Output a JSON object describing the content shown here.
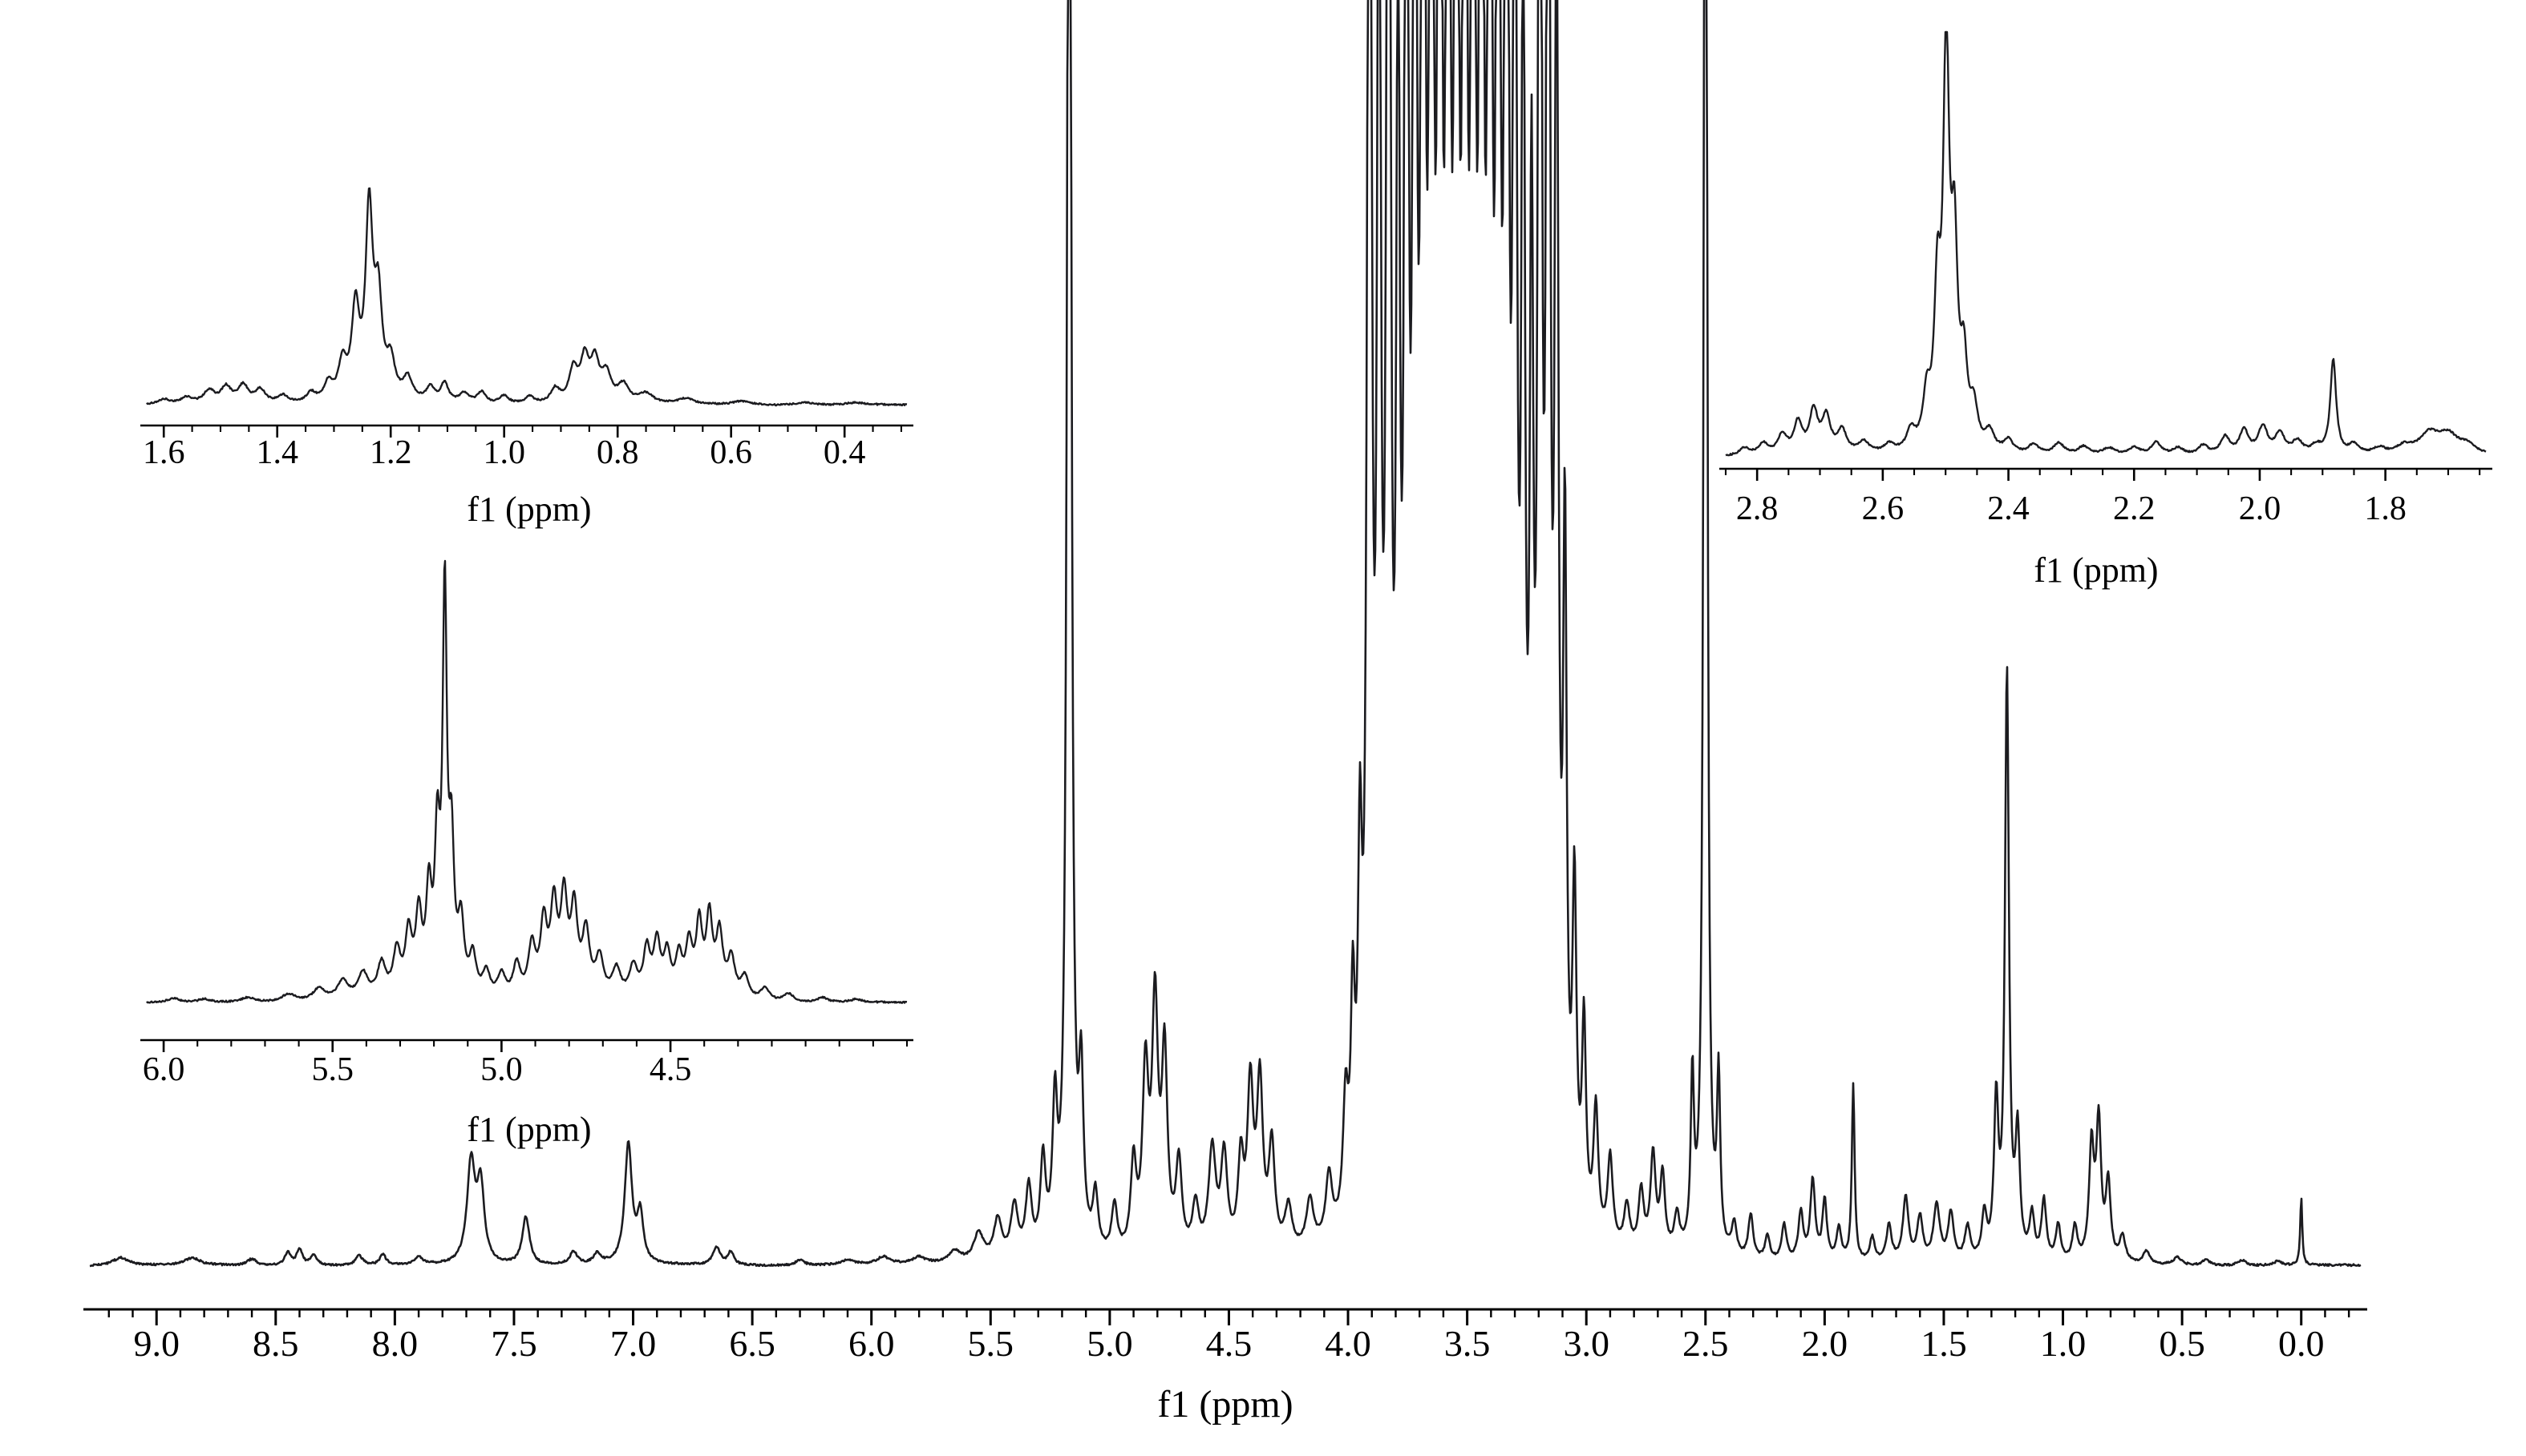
{
  "figure": {
    "background": "#ffffff",
    "curve_color": "#1b1b1f",
    "axis_color": "#000000",
    "description": "1H NMR spectrum with three inset expansions"
  },
  "chart_data": [
    {
      "id": "main-spectrum",
      "type": "line",
      "kind": "1H NMR full spectrum",
      "title": "",
      "xlabel": "f1 (ppm)",
      "ylabel": "",
      "grid": false,
      "x_axis_reversed": true,
      "x_range": [
        9.28,
        -0.25
      ],
      "ticks": {
        "major": [
          9.0,
          8.5,
          8.0,
          7.5,
          7.0,
          6.5,
          6.0,
          5.5,
          5.0,
          4.5,
          4.0,
          3.5,
          3.0,
          2.5,
          2.0,
          1.5,
          1.0,
          0.5,
          0.0
        ],
        "labels": [
          "9.0",
          "8.5",
          "8.0",
          "7.5",
          "7.0",
          "6.5",
          "6.0",
          "5.5",
          "5.0",
          "4.5",
          "4.0",
          "3.5",
          "3.0",
          "2.5",
          "2.0",
          "1.5",
          "1.0",
          "0.5",
          "0.0"
        ],
        "minor_step": 0.1
      },
      "peak_format": [
        "ppm",
        "height_px",
        "hwhm_ppm"
      ],
      "peaks": [
        [
          9.15,
          10,
          0.04
        ],
        [
          8.85,
          9,
          0.04
        ],
        [
          8.6,
          8,
          0.025
        ],
        [
          8.45,
          16,
          0.015
        ],
        [
          8.4,
          20,
          0.015
        ],
        [
          8.34,
          14,
          0.015
        ],
        [
          8.15,
          12,
          0.018
        ],
        [
          8.05,
          13,
          0.015
        ],
        [
          7.9,
          9,
          0.02
        ],
        [
          7.68,
          125,
          0.02
        ],
        [
          7.64,
          95,
          0.018
        ],
        [
          7.45,
          60,
          0.018
        ],
        [
          7.25,
          16,
          0.02
        ],
        [
          7.15,
          13,
          0.02
        ],
        [
          7.02,
          150,
          0.018
        ],
        [
          6.97,
          60,
          0.015
        ],
        [
          6.65,
          22,
          0.018
        ],
        [
          6.59,
          16,
          0.015
        ],
        [
          6.3,
          7,
          0.02
        ],
        [
          6.1,
          6,
          0.03
        ],
        [
          5.95,
          9,
          0.03
        ],
        [
          5.8,
          8,
          0.03
        ],
        [
          5.65,
          14,
          0.03
        ],
        [
          5.55,
          35,
          0.025
        ],
        [
          5.47,
          50,
          0.02
        ],
        [
          5.4,
          65,
          0.018
        ],
        [
          5.34,
          85,
          0.015
        ],
        [
          5.28,
          115,
          0.013
        ],
        [
          5.23,
          170,
          0.012
        ],
        [
          5.17,
          2600,
          0.009
        ],
        [
          5.12,
          200,
          0.011
        ],
        [
          5.06,
          70,
          0.013
        ],
        [
          4.98,
          60,
          0.014
        ],
        [
          4.9,
          110,
          0.014
        ],
        [
          4.85,
          220,
          0.015
        ],
        [
          4.81,
          300,
          0.015
        ],
        [
          4.77,
          240,
          0.014
        ],
        [
          4.71,
          110,
          0.015
        ],
        [
          4.64,
          60,
          0.016
        ],
        [
          4.57,
          130,
          0.018
        ],
        [
          4.52,
          120,
          0.016
        ],
        [
          4.45,
          110,
          0.014
        ],
        [
          4.41,
          200,
          0.015
        ],
        [
          4.37,
          205,
          0.015
        ],
        [
          4.32,
          130,
          0.015
        ],
        [
          4.25,
          55,
          0.018
        ],
        [
          4.16,
          60,
          0.018
        ],
        [
          4.08,
          80,
          0.016
        ],
        [
          4.01,
          150,
          0.013
        ],
        [
          3.98,
          250,
          0.01
        ],
        [
          3.95,
          400,
          0.01
        ],
        [
          3.91,
          2600,
          0.009
        ],
        [
          3.87,
          1800,
          0.009
        ],
        [
          3.83,
          2600,
          0.009
        ],
        [
          3.79,
          1400,
          0.009
        ],
        [
          3.755,
          2600,
          0.008
        ],
        [
          3.72,
          2200,
          0.009
        ],
        [
          3.685,
          2600,
          0.009
        ],
        [
          3.65,
          2600,
          0.009
        ],
        [
          3.615,
          2600,
          0.009
        ],
        [
          3.58,
          2600,
          0.009
        ],
        [
          3.545,
          2600,
          0.009
        ],
        [
          3.51,
          2600,
          0.009
        ],
        [
          3.475,
          2600,
          0.009
        ],
        [
          3.44,
          2600,
          0.009
        ],
        [
          3.405,
          2600,
          0.009
        ],
        [
          3.37,
          2400,
          0.009
        ],
        [
          3.335,
          2600,
          0.009
        ],
        [
          3.3,
          2000,
          0.009
        ],
        [
          3.265,
          1500,
          0.009
        ],
        [
          3.23,
          1100,
          0.009
        ],
        [
          3.195,
          2600,
          0.008
        ],
        [
          3.16,
          2600,
          0.008
        ],
        [
          3.125,
          1600,
          0.009
        ],
        [
          3.09,
          800,
          0.009
        ],
        [
          3.05,
          400,
          0.01
        ],
        [
          3.01,
          250,
          0.01
        ],
        [
          2.96,
          160,
          0.012
        ],
        [
          2.9,
          110,
          0.013
        ],
        [
          2.83,
          55,
          0.014
        ],
        [
          2.77,
          75,
          0.013
        ],
        [
          2.72,
          120,
          0.013
        ],
        [
          2.68,
          95,
          0.012
        ],
        [
          2.62,
          45,
          0.013
        ],
        [
          2.555,
          210,
          0.008
        ],
        [
          2.5,
          2600,
          0.0075
        ],
        [
          2.445,
          210,
          0.008
        ],
        [
          2.38,
          40,
          0.012
        ],
        [
          2.31,
          55,
          0.012
        ],
        [
          2.24,
          30,
          0.012
        ],
        [
          2.17,
          45,
          0.012
        ],
        [
          2.1,
          60,
          0.012
        ],
        [
          2.05,
          100,
          0.012
        ],
        [
          2.0,
          75,
          0.011
        ],
        [
          1.94,
          40,
          0.012
        ],
        [
          1.88,
          220,
          0.007
        ],
        [
          1.8,
          30,
          0.012
        ],
        [
          1.73,
          45,
          0.013
        ],
        [
          1.66,
          80,
          0.014
        ],
        [
          1.6,
          55,
          0.014
        ],
        [
          1.53,
          70,
          0.016
        ],
        [
          1.47,
          60,
          0.014
        ],
        [
          1.4,
          42,
          0.014
        ],
        [
          1.33,
          55,
          0.012
        ],
        [
          1.28,
          190,
          0.011
        ],
        [
          1.235,
          730,
          0.01
        ],
        [
          1.19,
          150,
          0.011
        ],
        [
          1.13,
          55,
          0.012
        ],
        [
          1.08,
          75,
          0.012
        ],
        [
          1.02,
          45,
          0.012
        ],
        [
          0.95,
          42,
          0.012
        ],
        [
          0.88,
          140,
          0.012
        ],
        [
          0.85,
          170,
          0.012
        ],
        [
          0.81,
          95,
          0.012
        ],
        [
          0.75,
          32,
          0.014
        ],
        [
          0.65,
          16,
          0.016
        ],
        [
          0.52,
          10,
          0.018
        ],
        [
          0.4,
          8,
          0.018
        ],
        [
          0.25,
          7,
          0.02
        ],
        [
          0.1,
          5,
          0.02
        ],
        [
          0.0,
          85,
          0.005
        ]
      ]
    },
    {
      "id": "inset-aliphatic",
      "type": "line",
      "kind": "inset expansion 1.6-0.4 ppm",
      "title": "",
      "xlabel": "f1 (ppm)",
      "grid": false,
      "x_axis_reversed": true,
      "x_range": [
        1.63,
        0.29
      ],
      "ticks": {
        "major": [
          1.6,
          1.4,
          1.2,
          1.0,
          0.8,
          0.6,
          0.4
        ],
        "labels": [
          "1.6",
          "1.4",
          "1.2",
          "1.0",
          "0.8",
          "0.6",
          "0.4"
        ],
        "minor_step": 0.05
      },
      "peak_format": [
        "ppm",
        "height_px",
        "hwhm_ppm"
      ],
      "peaks": [
        [
          1.6,
          6,
          0.012
        ],
        [
          1.56,
          8,
          0.012
        ],
        [
          1.52,
          16,
          0.012
        ],
        [
          1.49,
          20,
          0.011
        ],
        [
          1.46,
          22,
          0.011
        ],
        [
          1.43,
          17,
          0.011
        ],
        [
          1.39,
          10,
          0.012
        ],
        [
          1.34,
          12,
          0.01
        ],
        [
          1.31,
          22,
          0.009
        ],
        [
          1.285,
          45,
          0.009
        ],
        [
          1.262,
          110,
          0.008
        ],
        [
          1.238,
          232,
          0.0075
        ],
        [
          1.222,
          120,
          0.008
        ],
        [
          1.2,
          45,
          0.009
        ],
        [
          1.17,
          28,
          0.01
        ],
        [
          1.13,
          18,
          0.009
        ],
        [
          1.105,
          24,
          0.008
        ],
        [
          1.07,
          12,
          0.01
        ],
        [
          1.04,
          14,
          0.009
        ],
        [
          1.0,
          10,
          0.01
        ],
        [
          0.955,
          9,
          0.01
        ],
        [
          0.91,
          18,
          0.01
        ],
        [
          0.878,
          40,
          0.009
        ],
        [
          0.858,
          52,
          0.009
        ],
        [
          0.84,
          48,
          0.009
        ],
        [
          0.82,
          34,
          0.01
        ],
        [
          0.79,
          22,
          0.012
        ],
        [
          0.75,
          12,
          0.015
        ],
        [
          0.68,
          7,
          0.018
        ],
        [
          0.58,
          5,
          0.02
        ],
        [
          0.47,
          4,
          0.02
        ],
        [
          0.38,
          3,
          0.02
        ]
      ]
    },
    {
      "id": "inset-anomeric",
      "type": "line",
      "kind": "inset expansion 6.0-4.5 ppm",
      "title": "",
      "xlabel": "f1 (ppm)",
      "grid": false,
      "x_axis_reversed": true,
      "x_range": [
        6.05,
        3.8
      ],
      "ticks": {
        "major": [
          6.0,
          5.5,
          5.0,
          4.5
        ],
        "labels": [
          "6.0",
          "5.5",
          "5.0",
          "4.5"
        ],
        "minor_step": 0.1
      },
      "peak_format": [
        "ppm",
        "height_px",
        "hwhm_ppm"
      ],
      "peaks": [
        [
          5.97,
          5,
          0.02
        ],
        [
          5.88,
          4,
          0.02
        ],
        [
          5.75,
          6,
          0.025
        ],
        [
          5.63,
          10,
          0.025
        ],
        [
          5.54,
          16,
          0.022
        ],
        [
          5.47,
          24,
          0.02
        ],
        [
          5.41,
          32,
          0.018
        ],
        [
          5.355,
          42,
          0.015
        ],
        [
          5.31,
          55,
          0.013
        ],
        [
          5.275,
          75,
          0.012
        ],
        [
          5.245,
          95,
          0.011
        ],
        [
          5.215,
          120,
          0.01
        ],
        [
          5.19,
          180,
          0.009
        ],
        [
          5.168,
          488,
          0.0075
        ],
        [
          5.148,
          170,
          0.009
        ],
        [
          5.12,
          85,
          0.011
        ],
        [
          5.085,
          48,
          0.012
        ],
        [
          5.045,
          30,
          0.013
        ],
        [
          5.0,
          28,
          0.014
        ],
        [
          4.955,
          40,
          0.013
        ],
        [
          4.91,
          62,
          0.013
        ],
        [
          4.875,
          88,
          0.012
        ],
        [
          4.845,
          108,
          0.012
        ],
        [
          4.815,
          118,
          0.012
        ],
        [
          4.785,
          104,
          0.012
        ],
        [
          4.75,
          78,
          0.013
        ],
        [
          4.71,
          48,
          0.014
        ],
        [
          4.66,
          35,
          0.015
        ],
        [
          4.61,
          38,
          0.014
        ],
        [
          4.57,
          58,
          0.012
        ],
        [
          4.54,
          66,
          0.012
        ],
        [
          4.51,
          52,
          0.012
        ],
        [
          4.475,
          48,
          0.012
        ],
        [
          4.445,
          62,
          0.012
        ],
        [
          4.415,
          88,
          0.011
        ],
        [
          4.385,
          96,
          0.011
        ],
        [
          4.355,
          78,
          0.012
        ],
        [
          4.32,
          48,
          0.013
        ],
        [
          4.28,
          28,
          0.014
        ],
        [
          4.22,
          16,
          0.016
        ],
        [
          4.15,
          10,
          0.018
        ],
        [
          4.05,
          6,
          0.02
        ],
        [
          3.95,
          4,
          0.02
        ]
      ]
    },
    {
      "id": "inset-midfield",
      "type": "line",
      "kind": "inset expansion 2.8-1.7 ppm",
      "title": "",
      "xlabel": "f1 (ppm)",
      "grid": false,
      "x_axis_reversed": true,
      "x_range": [
        2.85,
        1.64
      ],
      "ticks": {
        "major": [
          2.8,
          2.6,
          2.4,
          2.2,
          2.0,
          1.8
        ],
        "labels": [
          "2.8",
          "2.6",
          "2.4",
          "2.2",
          "2.0",
          "1.8"
        ],
        "minor_step": 0.05
      },
      "peak_format": [
        "ppm",
        "height_px",
        "hwhm_ppm"
      ],
      "peaks": [
        [
          2.82,
          10,
          0.01
        ],
        [
          2.79,
          14,
          0.009
        ],
        [
          2.76,
          24,
          0.009
        ],
        [
          2.735,
          38,
          0.008
        ],
        [
          2.71,
          52,
          0.008
        ],
        [
          2.69,
          44,
          0.008
        ],
        [
          2.665,
          28,
          0.009
        ],
        [
          2.63,
          14,
          0.01
        ],
        [
          2.59,
          10,
          0.01
        ],
        [
          2.555,
          24,
          0.008
        ],
        [
          2.53,
          60,
          0.007
        ],
        [
          2.513,
          180,
          0.006
        ],
        [
          2.499,
          490,
          0.0058
        ],
        [
          2.486,
          230,
          0.006
        ],
        [
          2.471,
          100,
          0.0065
        ],
        [
          2.455,
          48,
          0.007
        ],
        [
          2.43,
          24,
          0.009
        ],
        [
          2.4,
          16,
          0.009
        ],
        [
          2.36,
          12,
          0.01
        ],
        [
          2.32,
          14,
          0.01
        ],
        [
          2.28,
          10,
          0.011
        ],
        [
          2.24,
          8,
          0.011
        ],
        [
          2.2,
          9,
          0.011
        ],
        [
          2.165,
          16,
          0.009
        ],
        [
          2.13,
          9,
          0.011
        ],
        [
          2.09,
          12,
          0.01
        ],
        [
          2.055,
          22,
          0.009
        ],
        [
          2.025,
          30,
          0.009
        ],
        [
          1.995,
          34,
          0.009
        ],
        [
          1.968,
          26,
          0.009
        ],
        [
          1.94,
          16,
          0.01
        ],
        [
          1.91,
          10,
          0.01
        ],
        [
          1.883,
          118,
          0.0055
        ],
        [
          1.85,
          12,
          0.009
        ],
        [
          1.81,
          8,
          0.012
        ],
        [
          1.77,
          10,
          0.015
        ],
        [
          1.73,
          26,
          0.02
        ],
        [
          1.7,
          22,
          0.018
        ],
        [
          1.67,
          12,
          0.018
        ]
      ]
    }
  ]
}
